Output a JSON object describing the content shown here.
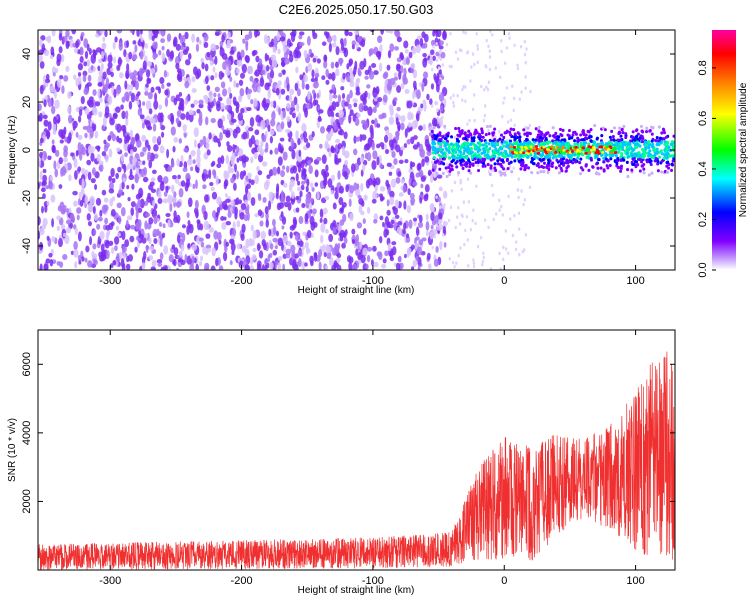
{
  "title": "C2E6.2025.050.17.50.G03",
  "chart_data": [
    {
      "type": "heatmap",
      "xlabel": "Height of straight line (km)",
      "ylabel": "Frequency (Hz)",
      "xlim": [
        -355,
        130
      ],
      "ylim": [
        -50,
        50
      ],
      "x_ticks": [
        -300,
        -200,
        -100,
        0,
        100
      ],
      "y_ticks": [
        -40,
        -20,
        0,
        20,
        40
      ],
      "colorbar": {
        "label": "Normalized spectral amplitude",
        "range": [
          0.0,
          0.95
        ],
        "ticks": [
          0.0,
          0.2,
          0.4,
          0.6,
          0.8
        ],
        "colors": [
          "#ffffff",
          "#8000ff",
          "#0000ff",
          "#00ffff",
          "#00ff00",
          "#ffff00",
          "#ff8000",
          "#ff0000",
          "#ff00a0"
        ]
      },
      "regions": [
        {
          "x_range": [
            -355,
            -55
          ],
          "freq_range": [
            -50,
            50
          ],
          "amplitude": 0.05,
          "description_color": "#7b2cf0"
        },
        {
          "x_range": [
            -55,
            130
          ],
          "freq_center": 0,
          "freq_halfwidth": 8,
          "amplitude": 0.3
        }
      ],
      "peak_track": {
        "x_range": [
          5,
          85
        ],
        "freq": 0,
        "amplitude": 0.9
      }
    },
    {
      "type": "line",
      "xlabel": "Height of straight line (km)",
      "ylabel": "SNR (10 * v/v)",
      "xlim": [
        -355,
        130
      ],
      "ylim": [
        0,
        7000
      ],
      "x_ticks": [
        -300,
        -200,
        -100,
        0,
        100
      ],
      "y_ticks": [
        2000,
        4000,
        6000
      ],
      "series": [
        {
          "color": "#f03030",
          "envelope": [
            {
              "x": -355,
              "low": 0,
              "high": 750
            },
            {
              "x": -100,
              "low": 50,
              "high": 950
            },
            {
              "x": -40,
              "low": 100,
              "high": 1100
            },
            {
              "x": -30,
              "low": 200,
              "high": 2000
            },
            {
              "x": -20,
              "low": 300,
              "high": 3000
            },
            {
              "x": 0,
              "low": 300,
              "high": 3900
            },
            {
              "x": 20,
              "low": 200,
              "high": 3600
            },
            {
              "x": 40,
              "low": 1000,
              "high": 4000
            },
            {
              "x": 60,
              "low": 1500,
              "high": 3800
            },
            {
              "x": 80,
              "low": 1200,
              "high": 4200
            },
            {
              "x": 100,
              "low": 500,
              "high": 5200
            },
            {
              "x": 122,
              "low": 300,
              "high": 6800
            },
            {
              "x": 130,
              "low": 300,
              "high": 5700
            }
          ]
        }
      ]
    }
  ]
}
